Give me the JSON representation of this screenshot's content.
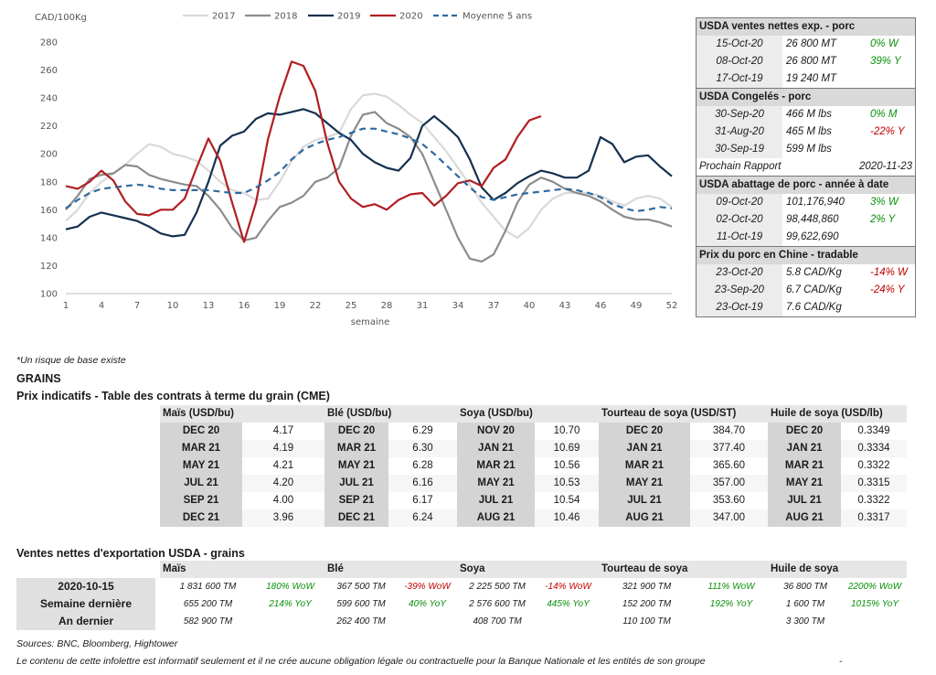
{
  "chart_data": {
    "type": "line",
    "ylabel": "CAD/100Kg",
    "xlabel": "semaine",
    "ylim": [
      100,
      280
    ],
    "xlim": [
      1,
      52
    ],
    "yticks": [
      100,
      120,
      140,
      160,
      180,
      200,
      220,
      240,
      260,
      280
    ],
    "xticks": [
      1,
      4,
      7,
      10,
      13,
      16,
      19,
      22,
      25,
      28,
      31,
      34,
      37,
      40,
      43,
      46,
      49,
      52
    ],
    "grid": false,
    "legend_position": "top",
    "series": [
      {
        "name": "2017",
        "color": "#d9d9d9",
        "dash": false,
        "x": [
          1,
          2,
          3,
          4,
          5,
          6,
          7,
          8,
          9,
          10,
          11,
          12,
          13,
          14,
          15,
          16,
          17,
          18,
          19,
          20,
          21,
          22,
          23,
          24,
          25,
          26,
          27,
          28,
          29,
          30,
          31,
          32,
          33,
          34,
          35,
          36,
          37,
          38,
          39,
          40,
          41,
          42,
          43,
          44,
          45,
          46,
          47,
          48,
          49,
          50,
          51,
          52
        ],
        "y": [
          152,
          160,
          172,
          180,
          186,
          192,
          200,
          207,
          205,
          200,
          198,
          195,
          188,
          180,
          174,
          172,
          167,
          168,
          180,
          195,
          205,
          210,
          212,
          215,
          232,
          242,
          243,
          241,
          235,
          228,
          222,
          212,
          202,
          190,
          178,
          165,
          155,
          145,
          140,
          147,
          160,
          168,
          172,
          172,
          172,
          170,
          166,
          163,
          168,
          170,
          168,
          162
        ]
      },
      {
        "name": "2018",
        "color": "#8c8c8c",
        "dash": false,
        "x": [
          1,
          2,
          3,
          4,
          5,
          6,
          7,
          8,
          9,
          10,
          11,
          12,
          13,
          14,
          15,
          16,
          17,
          18,
          19,
          20,
          21,
          22,
          23,
          24,
          25,
          26,
          27,
          28,
          29,
          30,
          31,
          32,
          33,
          34,
          35,
          36,
          37,
          38,
          39,
          40,
          41,
          42,
          43,
          44,
          45,
          46,
          47,
          48,
          49,
          50,
          51,
          52
        ],
        "y": [
          160,
          170,
          182,
          185,
          186,
          192,
          191,
          185,
          182,
          180,
          178,
          177,
          170,
          160,
          147,
          138,
          140,
          152,
          162,
          165,
          170,
          180,
          183,
          190,
          213,
          228,
          230,
          222,
          218,
          212,
          200,
          180,
          160,
          140,
          125,
          123,
          128,
          145,
          165,
          178,
          183,
          180,
          175,
          172,
          170,
          166,
          160,
          155,
          153,
          153,
          151,
          148
        ]
      },
      {
        "name": "2019",
        "color": "#14304f",
        "dash": false,
        "x": [
          1,
          2,
          3,
          4,
          5,
          6,
          7,
          8,
          9,
          10,
          11,
          12,
          13,
          14,
          15,
          16,
          17,
          18,
          19,
          20,
          21,
          22,
          23,
          24,
          25,
          26,
          27,
          28,
          29,
          30,
          31,
          32,
          33,
          34,
          35,
          36,
          37,
          38,
          39,
          40,
          41,
          42,
          43,
          44,
          45,
          46,
          47,
          48,
          49,
          50,
          51,
          52
        ],
        "y": [
          146,
          148,
          155,
          158,
          156,
          154,
          152,
          148,
          143,
          141,
          142,
          158,
          180,
          206,
          213,
          216,
          225,
          229,
          228,
          230,
          232,
          229,
          222,
          215,
          210,
          200,
          194,
          190,
          188,
          197,
          220,
          227,
          220,
          212,
          196,
          176,
          167,
          172,
          179,
          184,
          188,
          186,
          183,
          183,
          188,
          212,
          207,
          194,
          198,
          199,
          191,
          184
        ]
      },
      {
        "name": "2020",
        "color": "#b01e22",
        "dash": false,
        "x": [
          1,
          2,
          3,
          4,
          5,
          6,
          7,
          8,
          9,
          10,
          11,
          12,
          13,
          14,
          15,
          16,
          17,
          18,
          19,
          20,
          21,
          22,
          23,
          24,
          25,
          26,
          27,
          28,
          29,
          30,
          31,
          32,
          33,
          34,
          35,
          36,
          37,
          38,
          39,
          40,
          41
        ],
        "y": [
          177,
          175,
          180,
          188,
          181,
          166,
          157,
          156,
          160,
          160,
          168,
          190,
          211,
          195,
          165,
          137,
          165,
          210,
          241,
          266,
          263,
          245,
          208,
          180,
          168,
          162,
          164,
          160,
          167,
          171,
          172,
          163,
          170,
          179,
          181,
          177,
          190,
          196,
          212,
          224,
          227
        ]
      },
      {
        "name": "Moyenne 5 ans",
        "color": "#2d6aa0",
        "dash": true,
        "x": [
          1,
          2,
          3,
          4,
          5,
          6,
          7,
          8,
          9,
          10,
          11,
          12,
          13,
          14,
          15,
          16,
          17,
          18,
          19,
          20,
          21,
          22,
          23,
          24,
          25,
          26,
          27,
          28,
          29,
          30,
          31,
          32,
          33,
          34,
          35,
          36,
          37,
          38,
          39,
          40,
          41,
          42,
          43,
          44,
          45,
          46,
          47,
          48,
          49,
          50,
          51,
          52
        ],
        "y": [
          161,
          167,
          172,
          175,
          176,
          177,
          178,
          177,
          175,
          174,
          174,
          174,
          174,
          173,
          172,
          172,
          176,
          181,
          187,
          196,
          203,
          207,
          210,
          212,
          215,
          218,
          218,
          216,
          214,
          211,
          207,
          200,
          192,
          184,
          176,
          169,
          167,
          169,
          171,
          172,
          173,
          174,
          175,
          174,
          172,
          169,
          164,
          161,
          159,
          160,
          162,
          161
        ]
      }
    ]
  },
  "usda": {
    "sections": [
      {
        "title": "USDA ventes nettes exp. - porc",
        "rows": [
          {
            "date": "15-Oct-20",
            "value": "26 800  MT",
            "change": "0% W",
            "tone": "pos"
          },
          {
            "date": "08-Oct-20",
            "value": "26 800  MT",
            "change": "39% Y",
            "tone": "pos"
          },
          {
            "date": "17-Oct-19",
            "value": "19 240  MT",
            "change": "",
            "tone": ""
          }
        ]
      },
      {
        "title": "USDA Congelés - porc",
        "rows": [
          {
            "date": "30-Sep-20",
            "value": "466 M lbs",
            "change": "0% M",
            "tone": "pos"
          },
          {
            "date": "31-Aug-20",
            "value": "465 M lbs",
            "change": "-22% Y",
            "tone": "neg"
          },
          {
            "date": "30-Sep-19",
            "value": "599 M lbs",
            "change": "",
            "tone": ""
          }
        ]
      },
      {
        "note_label": "Prochain Rapport",
        "note_value": "2020-11-23"
      },
      {
        "title": "USDA abattage de porc - année à date",
        "rows": [
          {
            "date": "09-Oct-20",
            "value": "101,176,940",
            "change": "3% W",
            "tone": "pos"
          },
          {
            "date": "02-Oct-20",
            "value": "98,448,860",
            "change": "2% Y",
            "tone": "pos"
          },
          {
            "date": "11-Oct-19",
            "value": "99,622,690",
            "change": "",
            "tone": ""
          }
        ]
      },
      {
        "title": "Prix du porc en Chine - tradable",
        "rows": [
          {
            "date": "23-Oct-20",
            "value": "5.8 CAD/Kg",
            "change": "-14% W",
            "tone": "neg"
          },
          {
            "date": "23-Sep-20",
            "value": "6.7 CAD/Kg",
            "change": "-24% Y",
            "tone": "neg"
          },
          {
            "date": "23-Oct-19",
            "value": "7.6 CAD/Kg",
            "change": "",
            "tone": ""
          }
        ]
      }
    ]
  },
  "notes": {
    "risk": "*Un risque de base existe",
    "grains_title": "GRAINS",
    "table_title": "Prix indicatifs - Table des contrats à terme du grain (CME)",
    "export_title": "Ventes nettes d'exportation USDA - grains",
    "sources": "Sources: BNC, Bloomberg, Hightower",
    "disclaimer": "Le contenu de cette infolettre est informatif seulement et il ne crée aucune obligation légale ou contractuelle pour la Banque Nationale et les entités de son groupe",
    "dash": "-"
  },
  "futures": [
    {
      "name": "Maïs (USD/bu)",
      "rows": [
        [
          "DEC 20",
          "4.17"
        ],
        [
          "MAR 21",
          "4.19"
        ],
        [
          "MAY 21",
          "4.21"
        ],
        [
          "JUL 21",
          "4.20"
        ],
        [
          "SEP 21",
          "4.00"
        ],
        [
          "DEC 21",
          "3.96"
        ]
      ]
    },
    {
      "name": "Blé (USD/bu)",
      "rows": [
        [
          "DEC 20",
          "6.29"
        ],
        [
          "MAR 21",
          "6.30"
        ],
        [
          "MAY 21",
          "6.28"
        ],
        [
          "JUL 21",
          "6.16"
        ],
        [
          "SEP 21",
          "6.17"
        ],
        [
          "DEC 21",
          "6.24"
        ]
      ]
    },
    {
      "name": "Soya (USD/bu)",
      "rows": [
        [
          "NOV 20",
          "10.70"
        ],
        [
          "JAN 21",
          "10.69"
        ],
        [
          "MAR 21",
          "10.56"
        ],
        [
          "MAY 21",
          "10.53"
        ],
        [
          "JUL 21",
          "10.54"
        ],
        [
          "AUG 21",
          "10.46"
        ]
      ]
    },
    {
      "name": "Tourteau de soya (USD/ST)",
      "rows": [
        [
          "DEC 20",
          "384.70"
        ],
        [
          "JAN 21",
          "377.40"
        ],
        [
          "MAR 21",
          "365.60"
        ],
        [
          "MAY 21",
          "357.00"
        ],
        [
          "JUL 21",
          "353.60"
        ],
        [
          "AUG 21",
          "347.00"
        ]
      ]
    },
    {
      "name": "Huile de soya (USD/lb)",
      "rows": [
        [
          "DEC 20",
          "0.3349"
        ],
        [
          "JAN 21",
          "0.3334"
        ],
        [
          "MAR 21",
          "0.3322"
        ],
        [
          "MAY 21",
          "0.3315"
        ],
        [
          "JUL 21",
          "0.3322"
        ],
        [
          "AUG 21",
          "0.3317"
        ]
      ]
    }
  ],
  "exports": {
    "row_labels": [
      "2020-10-15",
      "Semaine dernière",
      "An dernier"
    ],
    "columns": [
      {
        "name": "Maïs",
        "rows": [
          [
            "1 831 600 TM",
            "180% WoW",
            "pos"
          ],
          [
            "655 200 TM",
            "214% YoY",
            "pos"
          ],
          [
            "582 900 TM",
            "",
            ""
          ]
        ]
      },
      {
        "name": "Blé",
        "rows": [
          [
            "367 500 TM",
            "-39% WoW",
            "neg"
          ],
          [
            "599 600 TM",
            "40% YoY",
            "pos"
          ],
          [
            "262 400 TM",
            "",
            ""
          ]
        ]
      },
      {
        "name": "Soya",
        "rows": [
          [
            "2 225 500 TM",
            "-14% WoW",
            "neg"
          ],
          [
            "2 576 600 TM",
            "445% YoY",
            "pos"
          ],
          [
            "408 700 TM",
            "",
            ""
          ]
        ]
      },
      {
        "name": "Tourteau de soya",
        "rows": [
          [
            "321 900 TM",
            "111% WoW",
            "pos"
          ],
          [
            "152 200 TM",
            "192% YoY",
            "pos"
          ],
          [
            "110 100 TM",
            "",
            ""
          ]
        ]
      },
      {
        "name": "Huile de soya",
        "rows": [
          [
            "36 800 TM",
            "2200% WoW",
            "pos"
          ],
          [
            "1 600 TM",
            "1015% YoY",
            "pos"
          ],
          [
            "3 300 TM",
            "",
            ""
          ]
        ]
      }
    ]
  },
  "colors": {
    "positive": "#0a8f0a",
    "negative": "#c00000"
  }
}
